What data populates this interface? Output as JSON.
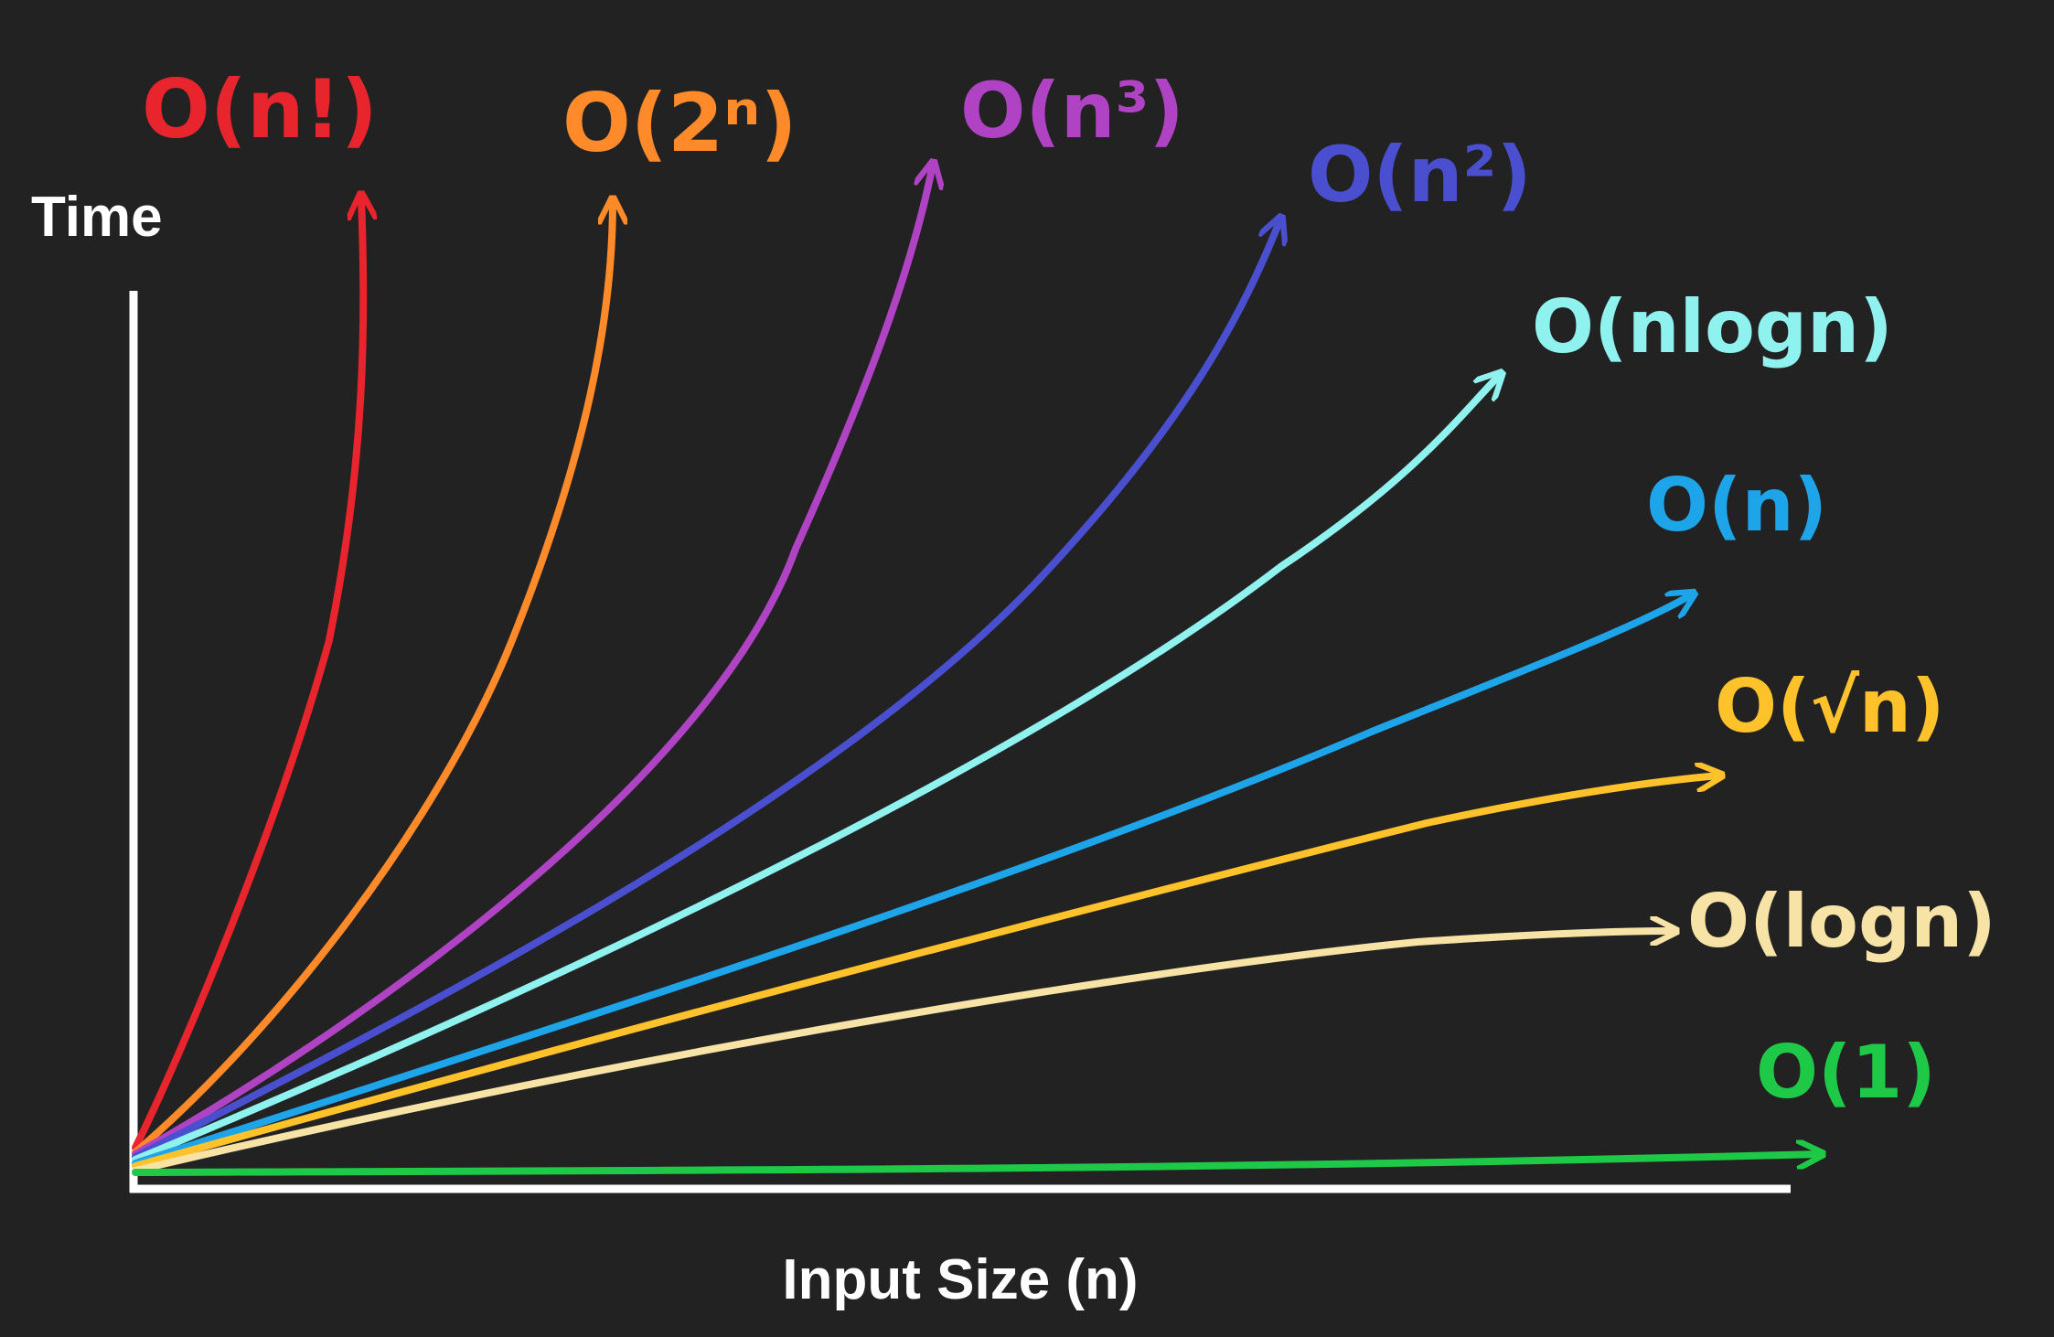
{
  "chart_data": {
    "type": "line",
    "title": "",
    "xlabel": "Input Size (n)",
    "ylabel": "Time",
    "grid": false,
    "legend": "labels at curve ends",
    "background": "#222222",
    "axis_color": "#ffffff",
    "series": [
      {
        "name": "O(n!)",
        "color": "#e8242c"
      },
      {
        "name": "O(2ⁿ)",
        "color": "#ff8a2a"
      },
      {
        "name": "O(n³)",
        "color": "#b042c4"
      },
      {
        "name": "O(n²)",
        "color": "#4a4fd0"
      },
      {
        "name": "O(nlogn)",
        "color": "#8ff2ee"
      },
      {
        "name": "O(n)",
        "color": "#1ea4e8"
      },
      {
        "name": "O(√n)",
        "color": "#ffc22b"
      },
      {
        "name": "O(logn)",
        "color": "#f7e3a6"
      },
      {
        "name": "O(1)",
        "color": "#1fc948"
      }
    ]
  }
}
